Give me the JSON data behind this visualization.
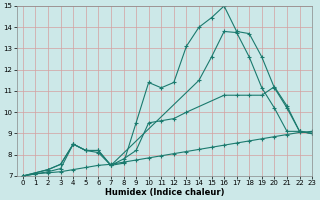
{
  "xlabel": "Humidex (Indice chaleur)",
  "xlim": [
    -0.5,
    23
  ],
  "ylim": [
    7,
    15
  ],
  "xticks": [
    0,
    1,
    2,
    3,
    4,
    5,
    6,
    7,
    8,
    9,
    10,
    11,
    12,
    13,
    14,
    15,
    16,
    17,
    18,
    19,
    20,
    21,
    22,
    23
  ],
  "yticks": [
    7,
    8,
    9,
    10,
    11,
    12,
    13,
    14,
    15
  ],
  "bg_color": "#cce8e8",
  "line_color": "#1a7a6e",
  "grid_color": "#d4a0a0",
  "line1_x": [
    0,
    1,
    2,
    3,
    4,
    5,
    6,
    7,
    8,
    9,
    10,
    11,
    12,
    13,
    14,
    15,
    16,
    17,
    18,
    19,
    20,
    21,
    22,
    23
  ],
  "line1_y": [
    7.0,
    7.1,
    7.15,
    7.2,
    7.3,
    7.4,
    7.5,
    7.55,
    7.65,
    7.75,
    7.85,
    7.95,
    8.05,
    8.15,
    8.25,
    8.35,
    8.45,
    8.55,
    8.65,
    8.75,
    8.85,
    8.95,
    9.05,
    9.1
  ],
  "line2_x": [
    0,
    2,
    3,
    4,
    5,
    6,
    7,
    8,
    9,
    10,
    11,
    12,
    13,
    16,
    17,
    18,
    19,
    20,
    21,
    22,
    23
  ],
  "line2_y": [
    7.0,
    7.3,
    7.55,
    8.5,
    8.2,
    8.2,
    7.5,
    7.8,
    8.2,
    9.5,
    9.6,
    9.7,
    10.0,
    10.8,
    10.8,
    10.8,
    10.8,
    11.2,
    10.3,
    9.1,
    9.0
  ],
  "line3_x": [
    0,
    2,
    3,
    4,
    5,
    6,
    7,
    8,
    9,
    10,
    11,
    12,
    13,
    14,
    15,
    16,
    17,
    18,
    19,
    20,
    21,
    22,
    23
  ],
  "line3_y": [
    7.0,
    7.3,
    7.55,
    8.5,
    8.2,
    8.1,
    7.5,
    7.6,
    9.5,
    11.4,
    11.15,
    11.4,
    13.1,
    14.0,
    14.45,
    15.0,
    13.8,
    13.7,
    12.6,
    11.15,
    10.2,
    9.1,
    9.0
  ],
  "line4_x": [
    0,
    1,
    2,
    3,
    4,
    5,
    6,
    7,
    14,
    15,
    16,
    17,
    18,
    19,
    20,
    21,
    22,
    23
  ],
  "line4_y": [
    7.0,
    7.1,
    7.2,
    7.35,
    8.5,
    8.2,
    8.2,
    7.5,
    11.5,
    12.6,
    13.8,
    13.75,
    12.6,
    11.15,
    10.2,
    9.1,
    9.1,
    9.0
  ]
}
